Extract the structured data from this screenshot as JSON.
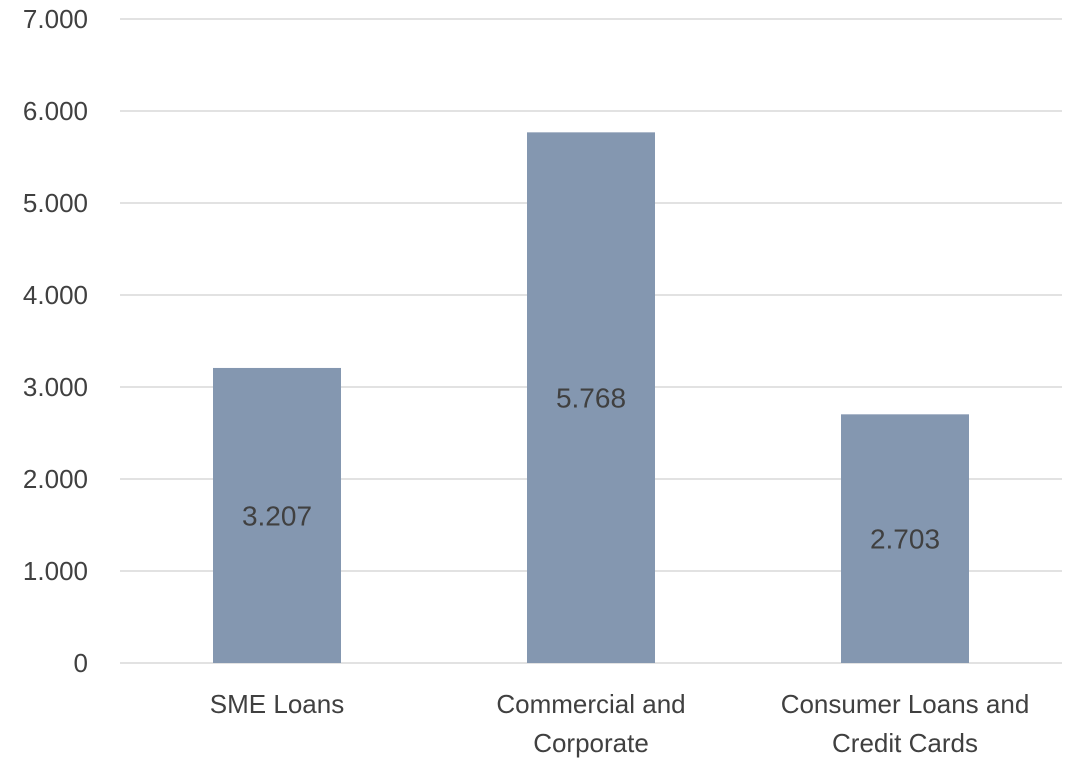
{
  "chart_data": {
    "type": "bar",
    "title": "",
    "xlabel": "",
    "ylabel": "",
    "categories": [
      [
        "SME Loans"
      ],
      [
        "Commercial and",
        "Corporate"
      ],
      [
        "Consumer Loans and",
        "Credit Cards"
      ]
    ],
    "values": [
      3207,
      5768,
      2703
    ],
    "value_labels": [
      "3.207",
      "5.768",
      "2.703"
    ],
    "ylim": [
      0,
      7000
    ],
    "yticks": [
      0,
      1000,
      2000,
      3000,
      4000,
      5000,
      6000,
      7000
    ],
    "ytick_labels": [
      "0",
      "1.000",
      "2.000",
      "3.000",
      "4.000",
      "5.000",
      "6.000",
      "7.000"
    ],
    "grid": true,
    "legend": "none",
    "colors": {
      "bar": "#8497b0",
      "grid": "#d9d9d9",
      "text": "#404040"
    }
  }
}
